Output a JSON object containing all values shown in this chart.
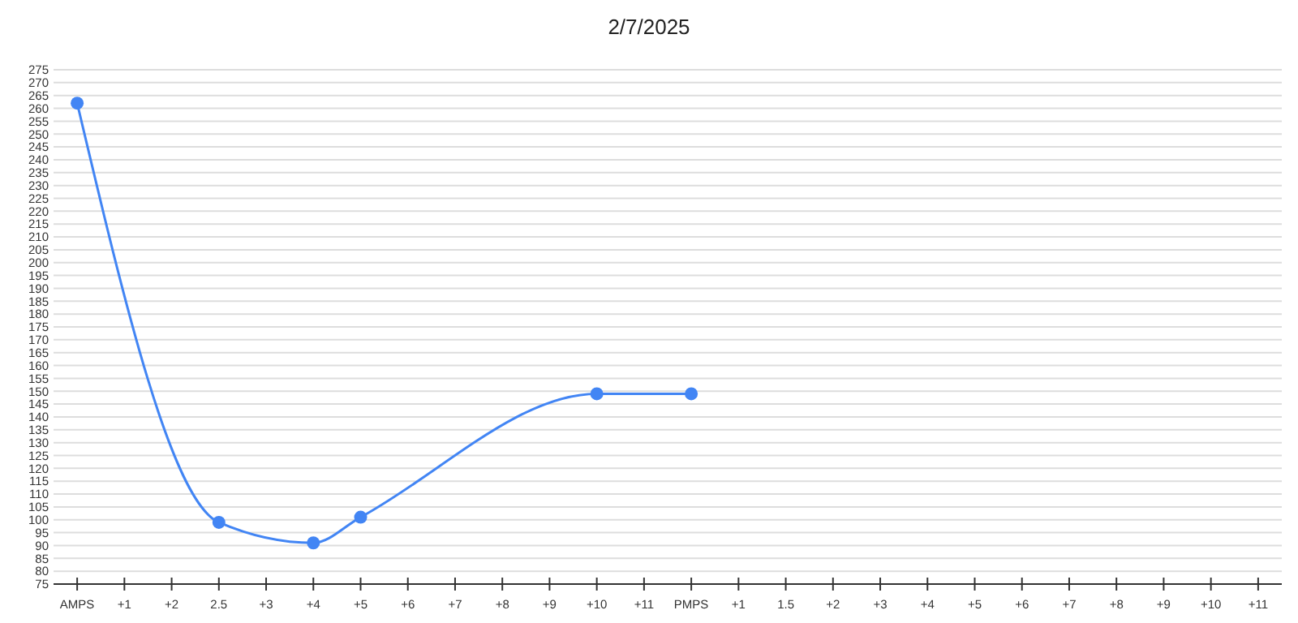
{
  "chart_data": {
    "type": "line",
    "title": "2/7/2025",
    "categories": [
      "AMPS",
      "+1",
      "+2",
      "2.5",
      "+3",
      "+4",
      "+5",
      "+6",
      "+7",
      "+8",
      "+9",
      "+10",
      "+11",
      "PMPS",
      "+1",
      "1.5",
      "+2",
      "+3",
      "+4",
      "+5",
      "+6",
      "+7",
      "+8",
      "+9",
      "+10",
      "+11"
    ],
    "series": [
      {
        "color": "#4285f4",
        "values": [
          262,
          null,
          null,
          99,
          null,
          91,
          101,
          null,
          null,
          null,
          null,
          149,
          null,
          149,
          null,
          null,
          null,
          null,
          null,
          null,
          null,
          null,
          null,
          null,
          null,
          null
        ]
      }
    ],
    "ylim": [
      75,
      275
    ],
    "yticks": [
      75,
      80,
      85,
      90,
      95,
      100,
      105,
      110,
      115,
      120,
      125,
      130,
      135,
      140,
      145,
      150,
      155,
      160,
      165,
      170,
      175,
      180,
      185,
      190,
      195,
      200,
      205,
      210,
      215,
      220,
      225,
      230,
      235,
      240,
      245,
      250,
      255,
      260,
      265,
      270,
      275
    ],
    "grid": "y",
    "marker": "circle",
    "line_style": "solid"
  }
}
